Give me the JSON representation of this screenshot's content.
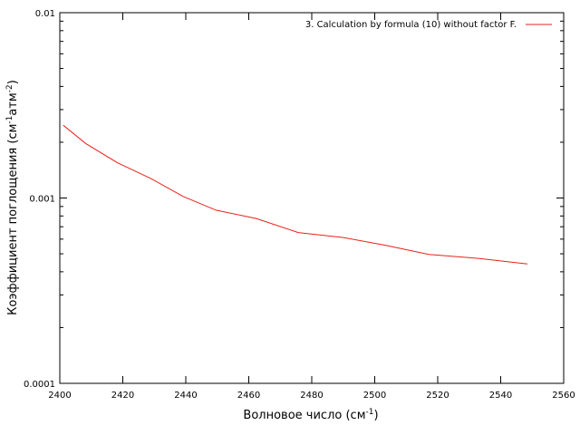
{
  "chart_data": {
    "type": "line",
    "xlabel": "Волновое число (см",
    "xlabel_sup": "-1",
    "xlabel_tail": ")",
    "ylabel": "Коэффициент поглощения (см",
    "ylabel_sup1": "-1",
    "ylabel_mid": "атм",
    "ylabel_sup2": "-2",
    "ylabel_tail": ")",
    "xlim": [
      2400,
      2560
    ],
    "ylim": [
      0.0001,
      0.01
    ],
    "yscale": "log",
    "grid": false,
    "legend_position": "top-right",
    "x_ticks": [
      2400,
      2420,
      2440,
      2460,
      2480,
      2500,
      2520,
      2540,
      2560
    ],
    "y_ticks": [
      0.0001,
      0.001,
      0.01
    ],
    "y_tick_labels": [
      "0.0001",
      "0.001",
      "0.01"
    ],
    "series": [
      {
        "name": "3. Calculation by formula (10) without factor F.",
        "color": "#e8221b",
        "x": [
          2401.1,
          2408.2,
          2418.3,
          2429.1,
          2439.1,
          2449.6,
          2462.4,
          2475.7,
          2489.8,
          2503.2,
          2517.2,
          2533.3,
          2548.5
        ],
        "y": [
          0.00247,
          0.00197,
          0.00155,
          0.00127,
          0.00102,
          0.00086,
          0.000775,
          0.000651,
          0.000613,
          0.000557,
          0.000496,
          0.000472,
          0.000441
        ]
      }
    ]
  }
}
